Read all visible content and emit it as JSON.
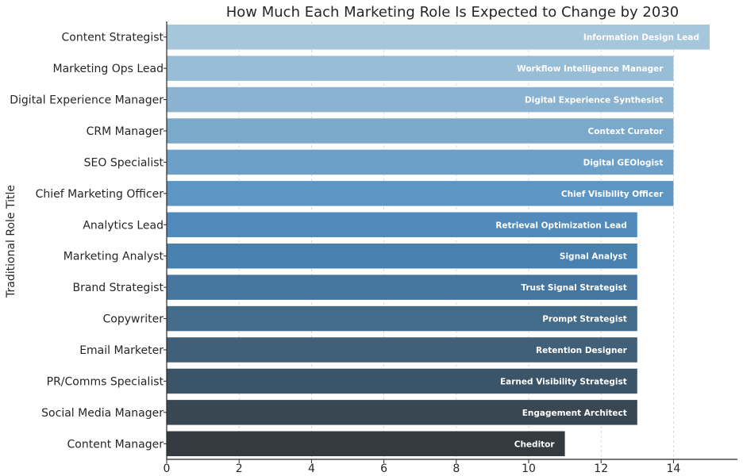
{
  "chart_data": {
    "type": "bar",
    "orientation": "horizontal",
    "title": "How Much Each Marketing Role Is Expected to Change by 2030",
    "xlabel": "",
    "ylabel": "Traditional Role Title",
    "xlim": [
      0,
      15.75
    ],
    "xticks": [
      0,
      2,
      4,
      6,
      8,
      10,
      12,
      14
    ],
    "grid": "x-dashed",
    "categories": [
      "Content Strategist",
      "Marketing Ops Lead",
      "Digital Experience Manager",
      "CRM Manager",
      "SEO Specialist",
      "Chief Marketing Officer",
      "Analytics Lead",
      "Marketing Analyst",
      "Brand Strategist",
      "Copywriter",
      "Email Marketer",
      "PR/Comms Specialist",
      "Social Media Manager",
      "Content Manager"
    ],
    "values": [
      15,
      14,
      14,
      14,
      14,
      14,
      13,
      13,
      13,
      13,
      13,
      13,
      13,
      11
    ],
    "bar_labels": [
      "Information Design Lead",
      "Workflow Intelligence Manager",
      "Digital Experience Synthesist",
      "Context Curator",
      "Digital GEOlogist",
      "Chief Visibility Officer",
      "Retrieval Optimization Lead",
      "Signal Analyst",
      "Trust Signal Strategist",
      "Prompt Strategist",
      "Retention Designer",
      "Earned Visibility Strategist",
      "Engagement Architect",
      "Cheditor"
    ],
    "colors": [
      "#a6c6db",
      "#98bdd6",
      "#8ab2d1",
      "#7ba9cc",
      "#6ca0c8",
      "#5d96c3",
      "#508bbb",
      "#4981ae",
      "#46769d",
      "#436b8a",
      "#405f78",
      "#3c5467",
      "#384752",
      "#343a40"
    ]
  }
}
